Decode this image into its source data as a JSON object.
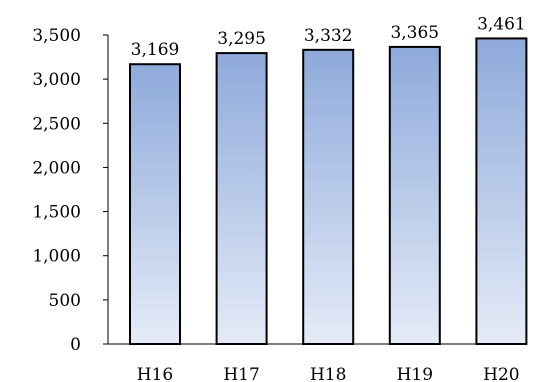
{
  "chart_data": {
    "type": "bar",
    "categories": [
      "H16",
      "H17",
      "H18",
      "H19",
      "H20"
    ],
    "values": [
      3169,
      3295,
      3332,
      3365,
      3461
    ],
    "data_labels": [
      "3,169",
      "3,295",
      "3,332",
      "3,365",
      "3,461"
    ],
    "yticks": [
      0,
      500,
      1000,
      1500,
      2000,
      2500,
      3000,
      3500
    ],
    "ytick_labels": [
      "0",
      "500",
      "1,000",
      "1,500",
      "2,000",
      "2,500",
      "3,000",
      "3,500"
    ],
    "ylim": [
      0,
      3500
    ],
    "title": "",
    "xlabel": "",
    "ylabel": "",
    "grid": false,
    "legend": "none",
    "bar_gradient_top": "#8eaadb",
    "bar_gradient_bottom": "#e4ebf7",
    "bar_outline": "#000000"
  }
}
